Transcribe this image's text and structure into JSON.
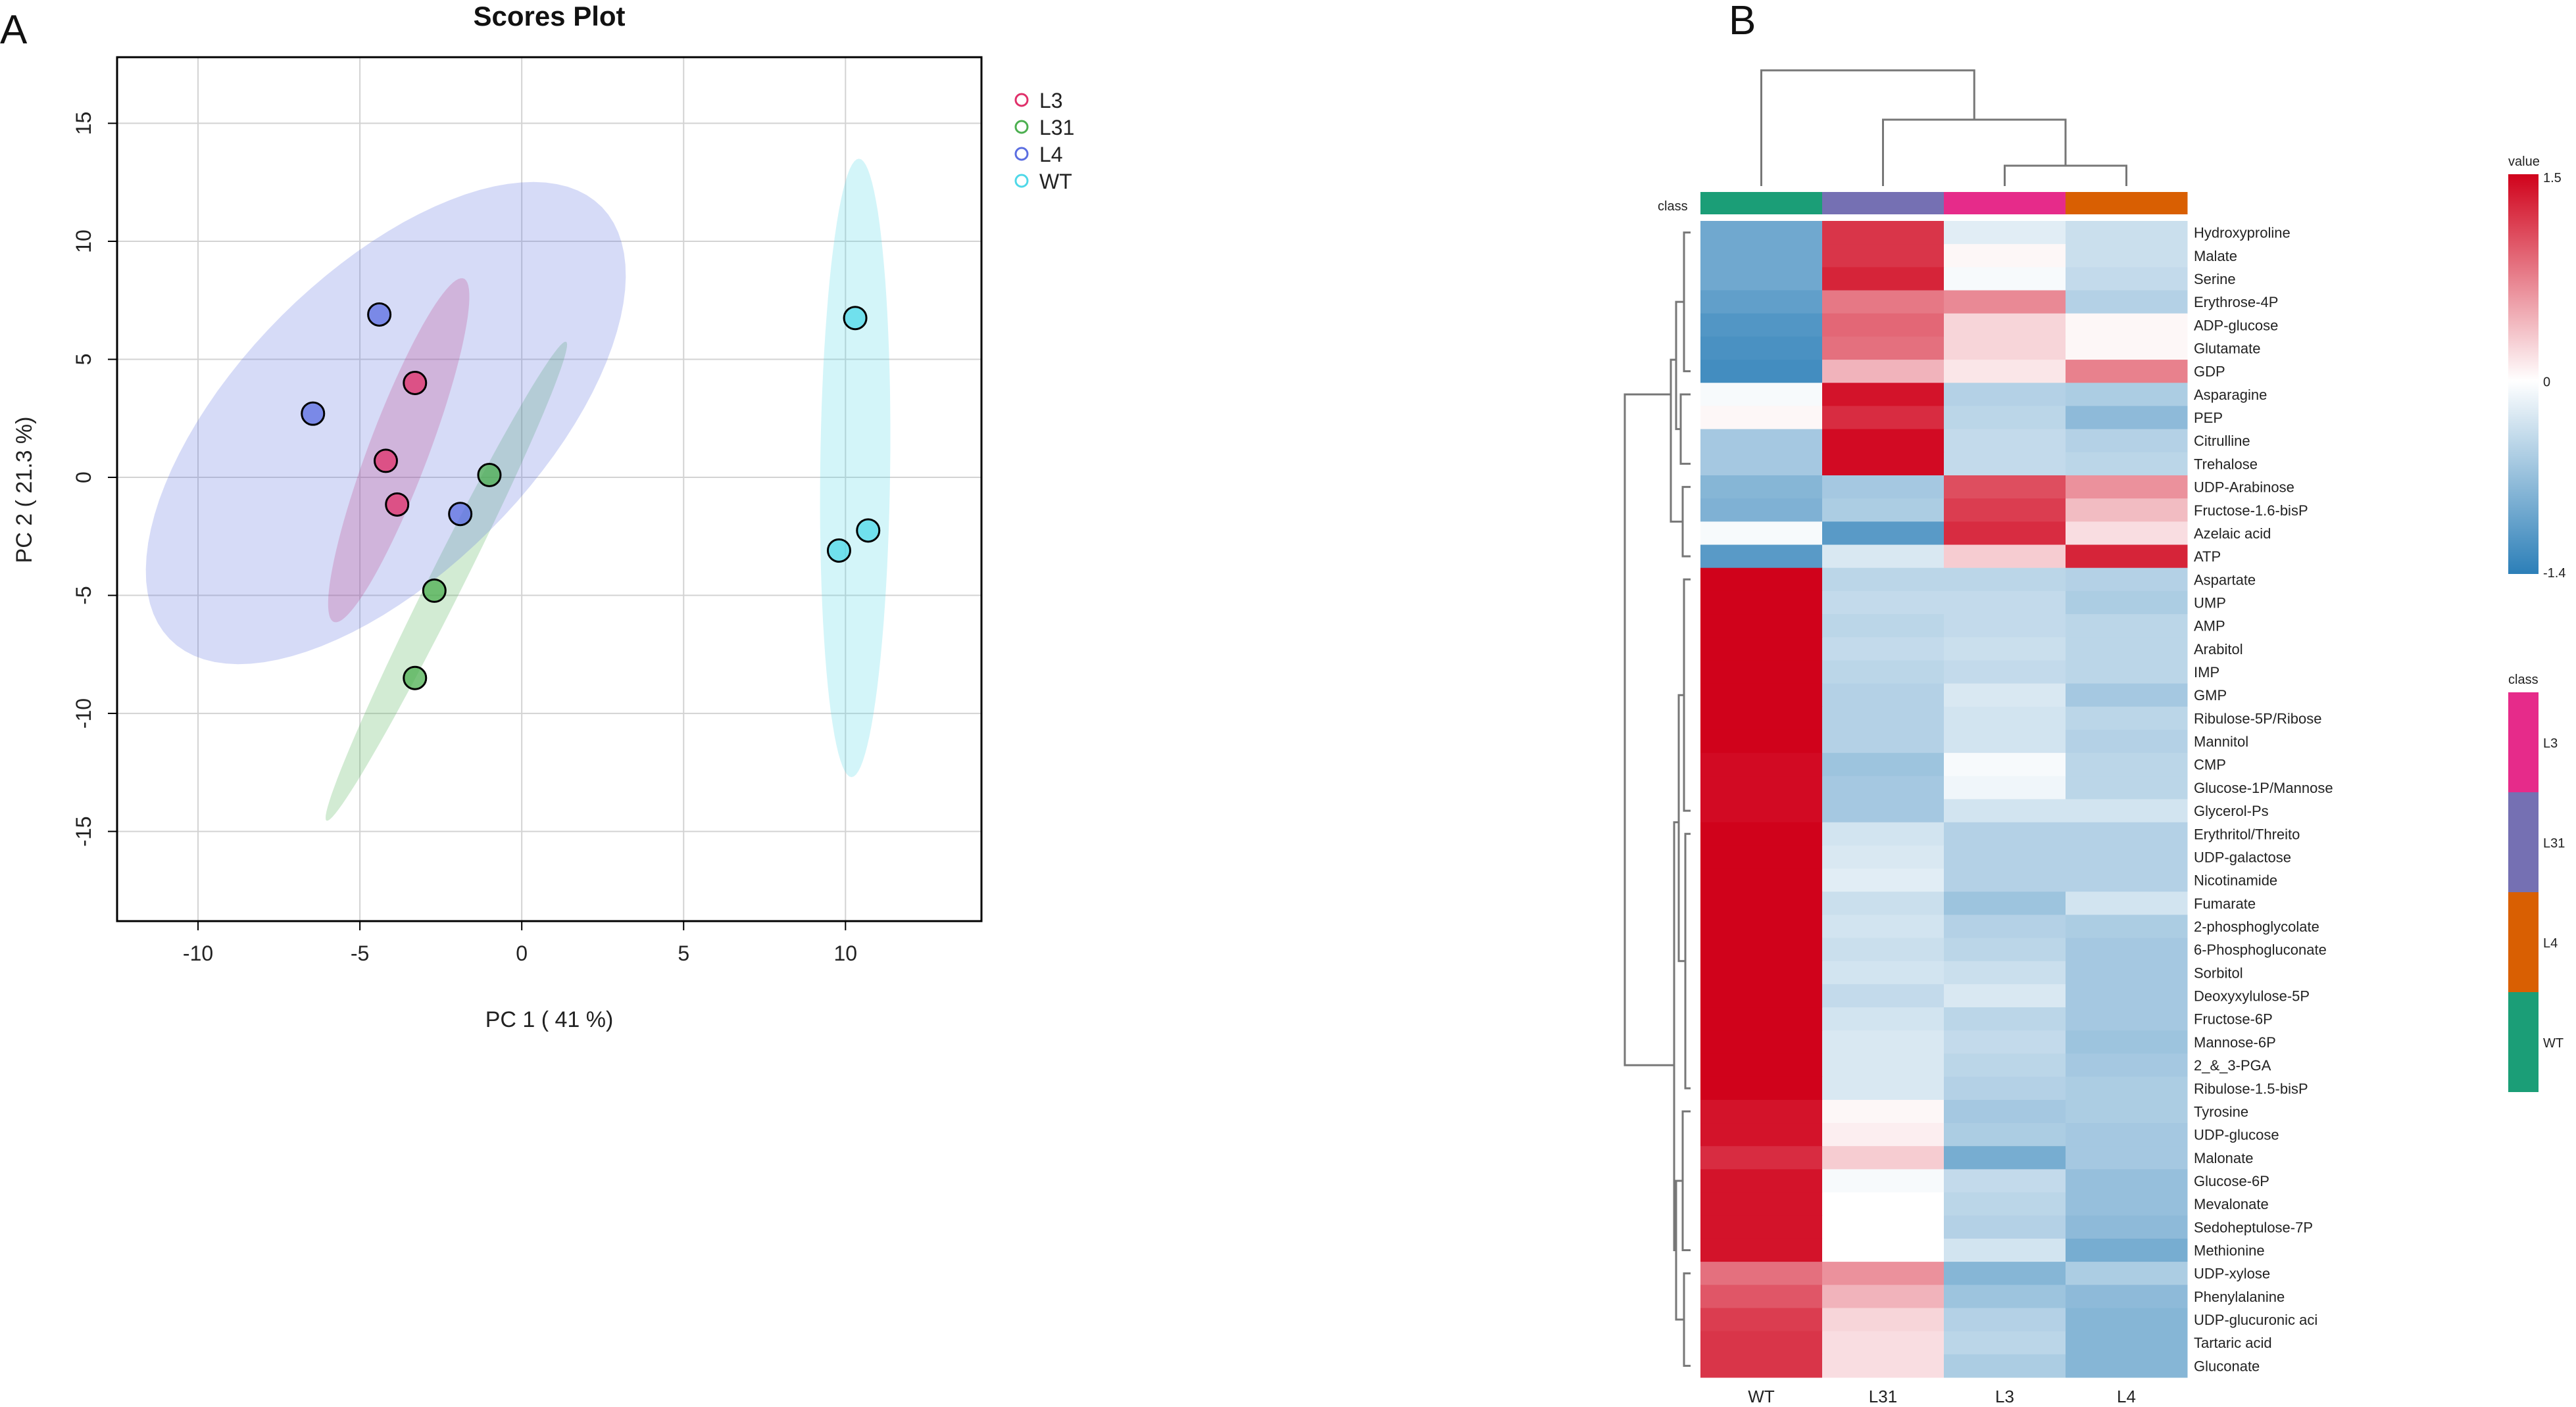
{
  "panels": {
    "a_letter": "A",
    "b_letter": "B"
  },
  "chart_data": [
    {
      "type": "scatter",
      "title": "Scores Plot",
      "xlabel": "PC 1 ( 41 %)",
      "ylabel": "PC 2 ( 21.3 %)",
      "xlim": [
        -12.5,
        14.2
      ],
      "ylim": [
        -18.8,
        17.8
      ],
      "xticks": [
        -10,
        -5,
        0,
        5,
        10
      ],
      "xtick_labels": [
        "-10",
        "-5",
        "0",
        "5",
        "10"
      ],
      "yticks": [
        -15,
        -10,
        -5,
        0,
        5,
        10,
        15
      ],
      "ytick_labels": [
        "-15",
        "-10",
        "-5",
        "0",
        "5",
        "10",
        "15"
      ],
      "grid": true,
      "legend_position": "top-right outside",
      "series": [
        {
          "name": "L3",
          "color": "#e0306a",
          "points": [
            [
              -3.3,
              4.0
            ],
            [
              -4.2,
              0.7
            ],
            [
              -3.85,
              -1.15
            ]
          ],
          "ellipse": {
            "center": [
              -3.8,
              1.15
            ],
            "semi_major": 7.55,
            "semi_minor": 0.95,
            "angle_deg": 74.8
          }
        },
        {
          "name": "L31",
          "color": "#4caf50",
          "points": [
            [
              -1.0,
              0.1
            ],
            [
              -2.7,
              -4.8
            ],
            [
              -3.3,
              -8.5
            ]
          ],
          "ellipse": {
            "center": [
              -2.33,
              -4.4
            ],
            "semi_major": 10.8,
            "semi_minor": 0.55,
            "angle_deg": 70.0
          }
        },
        {
          "name": "L4",
          "color": "#5b6ee1",
          "points": [
            [
              -4.4,
              6.9
            ],
            [
              -6.45,
              2.7
            ],
            [
              -1.9,
              -1.55
            ]
          ],
          "ellipse": {
            "center": [
              -4.2,
              2.3
            ],
            "semi_major": 11.5,
            "semi_minor": 5.2,
            "angle_deg": 59.0
          }
        },
        {
          "name": "WT",
          "color": "#4fd8e8",
          "points": [
            [
              10.3,
              6.75
            ],
            [
              10.7,
              -2.25
            ],
            [
              9.8,
              -3.1
            ]
          ],
          "ellipse": {
            "center": [
              10.3,
              0.4
            ],
            "semi_major": 13.1,
            "semi_minor": 1.08,
            "angle_deg": 89.5
          }
        }
      ]
    },
    {
      "type": "heatmap",
      "columns": [
        "WT",
        "L31",
        "L3",
        "L4"
      ],
      "rows": [
        "Hydroxyproline",
        "Malate",
        "Serine",
        "Erythrose-4P",
        "ADP-glucose",
        "Glutamate",
        "GDP",
        "Asparagine",
        "PEP",
        "Citrulline",
        "Trehalose",
        "UDP-Arabinose",
        "Fructose-1.6-bisP",
        "Azelaic acid",
        "ATP",
        "Aspartate",
        "UMP",
        "AMP",
        "Arabitol",
        "IMP",
        "GMP",
        "Ribulose-5P/Ribose",
        "Mannitol",
        "CMP",
        "Glucose-1P/Mannose",
        "Glycerol-Ps",
        "Erythritol/Threito",
        "UDP-galactose",
        "Nicotinamide",
        "Fumarate",
        "2-phosphoglycolate",
        "6-Phosphogluconate",
        "Sorbitol",
        "Deoxyxylulose-5P",
        "Fructose-6P",
        "Mannose-6P",
        "2_&_3-PGA",
        "Ribulose-1.5-bisP",
        "Tyrosine",
        "UDP-glucose",
        "Malonate",
        "Glucose-6P",
        "Mevalonate",
        "Sedoheptulose-7P",
        "Methionine",
        "UDP-xylose",
        "Phenylalanine",
        "UDP-glucuronic aci",
        "Tartaric acid",
        "Gluconate"
      ],
      "values": [
        [
          -0.95,
          1.2,
          -0.2,
          -0.35
        ],
        [
          -0.95,
          1.2,
          0.05,
          -0.35
        ],
        [
          -0.95,
          1.3,
          -0.05,
          -0.4
        ],
        [
          -1.05,
          0.8,
          0.7,
          -0.5
        ],
        [
          -1.15,
          0.9,
          0.25,
          0.05
        ],
        [
          -1.2,
          0.85,
          0.25,
          0.05
        ],
        [
          -1.25,
          0.45,
          0.15,
          0.75
        ],
        [
          -0.05,
          1.4,
          -0.5,
          -0.55
        ],
        [
          0.05,
          1.25,
          -0.45,
          -0.75
        ],
        [
          -0.6,
          1.45,
          -0.4,
          -0.5
        ],
        [
          -0.6,
          1.45,
          -0.4,
          -0.45
        ],
        [
          -0.8,
          -0.6,
          1.05,
          0.65
        ],
        [
          -0.85,
          -0.55,
          1.15,
          0.4
        ],
        [
          -0.05,
          -1.1,
          1.25,
          0.2
        ],
        [
          -1.1,
          -0.25,
          0.3,
          1.3
        ],
        [
          1.5,
          -0.45,
          -0.45,
          -0.5
        ],
        [
          1.5,
          -0.4,
          -0.4,
          -0.55
        ],
        [
          1.5,
          -0.45,
          -0.4,
          -0.45
        ],
        [
          1.5,
          -0.4,
          -0.35,
          -0.45
        ],
        [
          1.5,
          -0.45,
          -0.4,
          -0.45
        ],
        [
          1.5,
          -0.5,
          -0.25,
          -0.6
        ],
        [
          1.5,
          -0.5,
          -0.3,
          -0.45
        ],
        [
          1.5,
          -0.5,
          -0.3,
          -0.5
        ],
        [
          1.45,
          -0.65,
          -0.05,
          -0.45
        ],
        [
          1.45,
          -0.6,
          -0.1,
          -0.45
        ],
        [
          1.45,
          -0.6,
          -0.3,
          -0.3
        ],
        [
          1.5,
          -0.3,
          -0.5,
          -0.5
        ],
        [
          1.5,
          -0.25,
          -0.5,
          -0.5
        ],
        [
          1.5,
          -0.2,
          -0.5,
          -0.5
        ],
        [
          1.5,
          -0.35,
          -0.65,
          -0.3
        ],
        [
          1.5,
          -0.3,
          -0.5,
          -0.55
        ],
        [
          1.5,
          -0.35,
          -0.45,
          -0.6
        ],
        [
          1.5,
          -0.3,
          -0.35,
          -0.6
        ],
        [
          1.5,
          -0.4,
          -0.25,
          -0.6
        ],
        [
          1.5,
          -0.3,
          -0.45,
          -0.6
        ],
        [
          1.5,
          -0.25,
          -0.4,
          -0.65
        ],
        [
          1.5,
          -0.25,
          -0.45,
          -0.6
        ],
        [
          1.5,
          -0.25,
          -0.5,
          -0.55
        ],
        [
          1.4,
          0.05,
          -0.6,
          -0.55
        ],
        [
          1.4,
          0.1,
          -0.55,
          -0.6
        ],
        [
          1.25,
          0.3,
          -0.9,
          -0.6
        ],
        [
          1.4,
          -0.05,
          -0.4,
          -0.7
        ],
        [
          1.4,
          0.0,
          -0.45,
          -0.7
        ],
        [
          1.4,
          0.0,
          -0.5,
          -0.75
        ],
        [
          1.4,
          0.0,
          -0.3,
          -0.9
        ],
        [
          0.85,
          0.65,
          -0.8,
          -0.55
        ],
        [
          1.0,
          0.45,
          -0.65,
          -0.75
        ],
        [
          1.15,
          0.25,
          -0.5,
          -0.8
        ],
        [
          1.2,
          0.2,
          -0.45,
          -0.8
        ],
        [
          1.2,
          0.2,
          -0.55,
          -0.8
        ]
      ],
      "class_label": "class",
      "column_classes": [
        "WT",
        "L31",
        "L3",
        "L4"
      ],
      "class_colors": {
        "L3": "#e62b8a",
        "L31": "#7570b3",
        "L4": "#d95f02",
        "WT": "#1b9e77"
      },
      "value_legend": {
        "title": "value",
        "max_label": "1.5",
        "mid_label": "0",
        "min_label": "-1.4",
        "range": [
          -1.4,
          1.5
        ]
      },
      "class_legend": {
        "title": "class",
        "items": [
          "L3",
          "L31",
          "L4",
          "WT"
        ]
      }
    }
  ],
  "colors": {
    "heat_low": "#2c7fb8",
    "heat_mid": "#ffffff",
    "heat_high": "#d0021b",
    "grid": "#d3d3d3",
    "axis": "#000000",
    "dendrogram": "#777777"
  }
}
